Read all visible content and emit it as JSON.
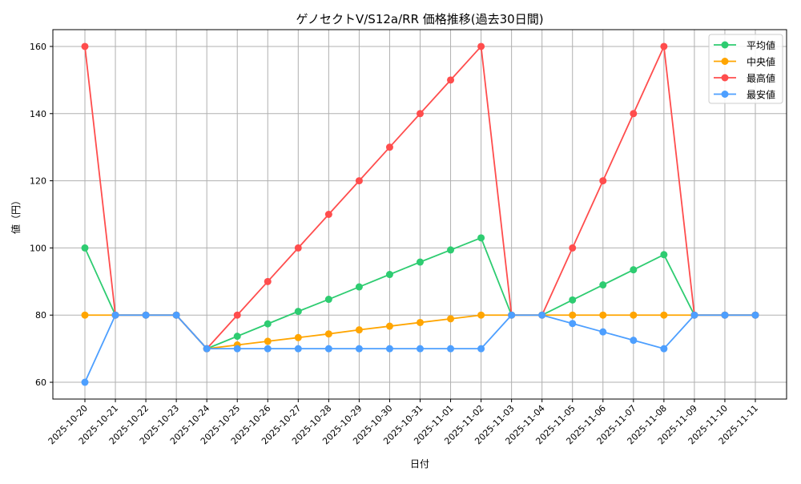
{
  "chart_data": {
    "type": "line",
    "title": "ゲノセクトV/S12a/RR 価格推移(過去30日間)",
    "xlabel": "日付",
    "ylabel": "値（円）",
    "ylim": [
      55,
      165
    ],
    "yticks": [
      60,
      80,
      100,
      120,
      140,
      160
    ],
    "grid": true,
    "legend_position": "top-right",
    "x": [
      "2025-10-20",
      "2025-10-21",
      "2025-10-22",
      "2025-10-23",
      "2025-10-24",
      "2025-10-25",
      "2025-10-26",
      "2025-10-27",
      "2025-10-28",
      "2025-10-29",
      "2025-10-30",
      "2025-10-31",
      "2025-11-01",
      "2025-11-02",
      "2025-11-03",
      "2025-11-04",
      "2025-11-05",
      "2025-11-06",
      "2025-11-07",
      "2025-11-08",
      "2025-11-09",
      "2025-11-10",
      "2025-11-11"
    ],
    "series": [
      {
        "name": "平均値",
        "color": "#2ecc71",
        "values": [
          100,
          80,
          80,
          80,
          70,
          73.7,
          77.4,
          81.1,
          84.7,
          88.4,
          92.1,
          95.8,
          99.4,
          103,
          80,
          80,
          84.5,
          89,
          93.5,
          98,
          80,
          80,
          80
        ]
      },
      {
        "name": "中央値",
        "color": "#ffa500",
        "values": [
          80,
          80,
          80,
          80,
          70,
          71.1,
          72.2,
          73.3,
          74.4,
          75.6,
          76.7,
          77.8,
          78.9,
          80,
          80,
          80,
          80,
          80,
          80,
          80,
          80,
          80,
          80
        ]
      },
      {
        "name": "最高値",
        "color": "#ff4d4d",
        "values": [
          160,
          80,
          80,
          80,
          70,
          80,
          90,
          100,
          110,
          120,
          130,
          140,
          150,
          160,
          80,
          80,
          100,
          120,
          140,
          160,
          80,
          80,
          80
        ]
      },
      {
        "name": "最安値",
        "color": "#4d9fff",
        "values": [
          60,
          80,
          80,
          80,
          70,
          70,
          70,
          70,
          70,
          70,
          70,
          70,
          70,
          70,
          80,
          80,
          77.5,
          75,
          72.5,
          70,
          80,
          80,
          80
        ]
      }
    ]
  }
}
